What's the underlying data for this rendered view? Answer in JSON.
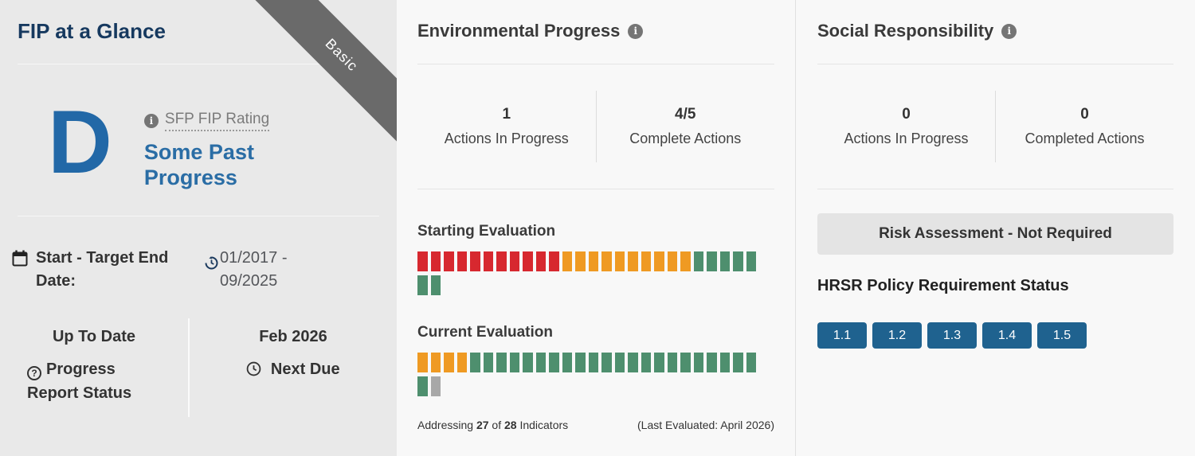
{
  "left_panel": {
    "title": "FIP at a Glance",
    "ribbon": "Basic",
    "rating": {
      "grade": "D",
      "label": "SFP FIP Rating",
      "description": "Some Past Progress"
    },
    "dates": {
      "label": "Start - Target End Date:",
      "value": "01/2017 - 09/2025"
    },
    "progress_report": {
      "status_value": "Up To Date",
      "status_label": "Progress Report Status",
      "next_due_value": "Feb 2026",
      "next_due_label": "Next Due"
    }
  },
  "environmental": {
    "title": "Environmental Progress",
    "stats": [
      {
        "value": "1",
        "label": "Actions In Progress"
      },
      {
        "value": "4/5",
        "label": "Complete Actions"
      }
    ],
    "evaluations": [
      {
        "label": "Starting Evaluation",
        "segments": [
          {
            "color": "red",
            "count": 11
          },
          {
            "color": "orange",
            "count": 10
          },
          {
            "color": "green",
            "count": 7
          }
        ]
      },
      {
        "label": "Current Evaluation",
        "segments": [
          {
            "color": "orange",
            "count": 4
          },
          {
            "color": "green",
            "count": 23
          },
          {
            "color": "gray",
            "count": 1
          }
        ]
      }
    ],
    "footer": {
      "addressing_prefix": "Addressing",
      "addressing_current": "27",
      "addressing_of": "of",
      "addressing_total": "28",
      "addressing_suffix": "Indicators",
      "last_evaluated": "(Last Evaluated: April 2026)"
    }
  },
  "social": {
    "title": "Social Responsibility",
    "stats": [
      {
        "value": "0",
        "label": "Actions In Progress"
      },
      {
        "value": "0",
        "label": "Completed Actions"
      }
    ],
    "risk_assessment": "Risk Assessment - Not Required",
    "hrsr_title": "HRSR Policy Requirement Status",
    "hrsr_badges": [
      "1.1",
      "1.2",
      "1.3",
      "1.4",
      "1.5"
    ]
  },
  "colors": {
    "red": "#d7282f",
    "orange": "#ef9a23",
    "green": "#4e8f6e",
    "gray": "#a8a8a8",
    "badge_blue": "#1f628f"
  }
}
